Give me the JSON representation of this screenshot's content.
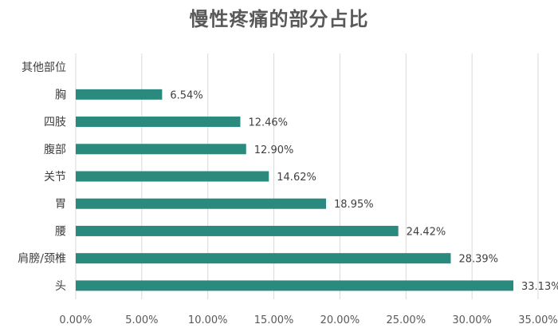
{
  "chart_data": {
    "type": "bar",
    "orientation": "horizontal",
    "title": "慢性疼痛的部分占比",
    "xlabel": "",
    "ylabel": "",
    "categories": [
      "其他部位",
      "胸",
      "四肢",
      "腹部",
      "关节",
      "胃",
      "腰",
      "肩膀/颈椎",
      "头"
    ],
    "values": [
      null,
      6.54,
      12.46,
      12.9,
      14.62,
      18.95,
      24.42,
      28.39,
      33.13
    ],
    "data_labels": [
      "",
      "6.54%",
      "12.46%",
      "12.90%",
      "14.62%",
      "18.95%",
      "24.42%",
      "28.39%",
      "33.13%"
    ],
    "xlim": [
      0,
      35
    ],
    "x_ticks": [
      0,
      5,
      10,
      15,
      20,
      25,
      30,
      35
    ],
    "x_tick_labels": [
      "0.00%",
      "5.00%",
      "10.00%",
      "15.00%",
      "20.00%",
      "25.00%",
      "30.00%",
      "35.00%"
    ],
    "grid": "vertical",
    "legend": "none",
    "bar_color": "#2a8a7e",
    "grid_color": "#d9d9d9"
  }
}
